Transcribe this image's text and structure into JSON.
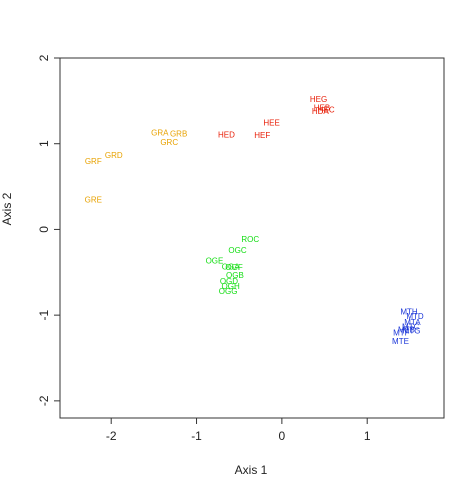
{
  "chart_data": {
    "type": "scatter",
    "title": "",
    "xlabel": "Axis 1",
    "ylabel": "Axis 2",
    "xlim": [
      -2.6,
      1.9
    ],
    "ylim": [
      -2.2,
      2.0
    ],
    "x_ticks": [
      -2,
      -1,
      0,
      1
    ],
    "y_ticks": [
      -2,
      -1,
      0,
      1,
      2
    ],
    "x_tick_labels": [
      "-2",
      "-1",
      "0",
      "1"
    ],
    "y_tick_labels": [
      "-2",
      "-1",
      "0",
      "1",
      "2"
    ],
    "grid": false,
    "legend": "none",
    "series": [
      {
        "color": "#e8a200",
        "points": [
          {
            "label": "GRA",
            "x": -1.43,
            "y": 1.13
          },
          {
            "label": "GRB",
            "x": -1.21,
            "y": 1.12
          },
          {
            "label": "GRC",
            "x": -1.32,
            "y": 1.02
          },
          {
            "label": "GRD",
            "x": -1.97,
            "y": 0.87
          },
          {
            "label": "GRF",
            "x": -2.21,
            "y": 0.8
          },
          {
            "label": "GRE",
            "x": -2.21,
            "y": 0.35
          }
        ]
      },
      {
        "color": "#e8200a",
        "points": [
          {
            "label": "HEG",
            "x": 0.43,
            "y": 1.52
          },
          {
            "label": "HEB",
            "x": 0.47,
            "y": 1.42
          },
          {
            "label": "HEC",
            "x": 0.52,
            "y": 1.4
          },
          {
            "label": "HDA",
            "x": 0.45,
            "y": 1.38
          },
          {
            "label": "HEE",
            "x": -0.12,
            "y": 1.25
          },
          {
            "label": "HED",
            "x": -0.65,
            "y": 1.11
          },
          {
            "label": "HEF",
            "x": -0.23,
            "y": 1.1
          }
        ]
      },
      {
        "color": "#11dd11",
        "points": [
          {
            "label": "ROC",
            "x": -0.37,
            "y": -0.11
          },
          {
            "label": "OGC",
            "x": -0.52,
            "y": -0.24
          },
          {
            "label": "OGE",
            "x": -0.79,
            "y": -0.36
          },
          {
            "label": "OGA",
            "x": -0.6,
            "y": -0.43
          },
          {
            "label": "OGF",
            "x": -0.56,
            "y": -0.44
          },
          {
            "label": "OGB",
            "x": -0.55,
            "y": -0.53
          },
          {
            "label": "OGD",
            "x": -0.62,
            "y": -0.6
          },
          {
            "label": "OGH",
            "x": -0.6,
            "y": -0.66
          },
          {
            "label": "OGG",
            "x": -0.63,
            "y": -0.72
          }
        ]
      },
      {
        "color": "#1a35d8",
        "points": [
          {
            "label": "MTH",
            "x": 1.49,
            "y": -0.96
          },
          {
            "label": "MTD",
            "x": 1.56,
            "y": -1.01
          },
          {
            "label": "MTA",
            "x": 1.53,
            "y": -1.08
          },
          {
            "label": "MTC",
            "x": 1.51,
            "y": -1.13
          },
          {
            "label": "MTB",
            "x": 1.46,
            "y": -1.17
          },
          {
            "label": "MTG",
            "x": 1.52,
            "y": -1.18
          },
          {
            "label": "MTF",
            "x": 1.4,
            "y": -1.2
          },
          {
            "label": "MTE",
            "x": 1.39,
            "y": -1.3
          }
        ]
      }
    ]
  }
}
